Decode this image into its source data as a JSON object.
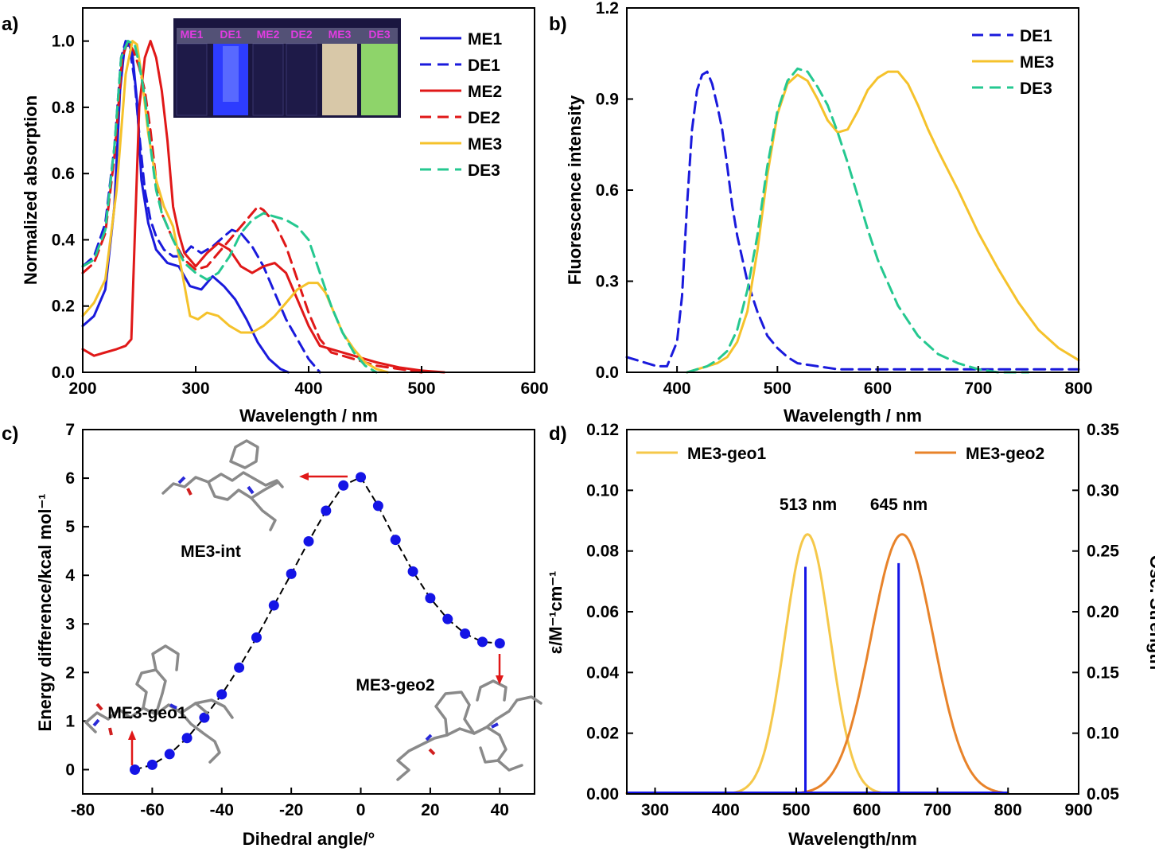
{
  "chart_data": [
    {
      "panel": "a)",
      "type": "line",
      "xlabel": "Wavelength / nm",
      "ylabel": "Normalized absorption",
      "xlim": [
        200,
        600
      ],
      "ylim": [
        0.0,
        1.1
      ],
      "xticks": [
        "200",
        "300",
        "400",
        "500",
        "600"
      ],
      "yticks": [
        "0.0",
        "0.2",
        "0.4",
        "0.6",
        "0.8",
        "1.0"
      ],
      "legend_position": "top-right",
      "inset_labels": [
        "ME1",
        "DE1",
        "ME2",
        "DE2",
        "ME3",
        "DE3"
      ],
      "series": [
        {
          "name": "ME1",
          "color": "#1a1adc",
          "dash": false,
          "x": [
            200,
            210,
            220,
            228,
            233,
            237,
            240,
            244,
            248,
            252,
            258,
            265,
            275,
            285,
            295,
            305,
            315,
            325,
            335,
            345,
            355,
            365,
            375,
            382
          ],
          "y": [
            0.14,
            0.17,
            0.25,
            0.5,
            0.85,
            0.98,
            1.0,
            0.96,
            0.82,
            0.58,
            0.45,
            0.37,
            0.33,
            0.32,
            0.26,
            0.25,
            0.29,
            0.26,
            0.22,
            0.16,
            0.09,
            0.04,
            0.01,
            0.0
          ]
        },
        {
          "name": "DE1",
          "color": "#1a1adc",
          "dash": true,
          "x": [
            200,
            210,
            220,
            228,
            234,
            238,
            242,
            246,
            250,
            255,
            260,
            265,
            272,
            280,
            288,
            296,
            305,
            315,
            325,
            332,
            340,
            350,
            360,
            370,
            380,
            390,
            400,
            410
          ],
          "y": [
            0.32,
            0.35,
            0.45,
            0.68,
            0.95,
            1.0,
            0.97,
            0.88,
            0.72,
            0.55,
            0.46,
            0.41,
            0.37,
            0.35,
            0.35,
            0.38,
            0.36,
            0.38,
            0.41,
            0.43,
            0.42,
            0.38,
            0.32,
            0.24,
            0.16,
            0.1,
            0.04,
            0.0
          ]
        },
        {
          "name": "ME2",
          "color": "#e01818",
          "dash": false,
          "x": [
            200,
            210,
            220,
            230,
            238,
            243,
            246,
            250,
            255,
            260,
            265,
            270,
            275,
            280,
            285,
            290,
            295,
            300,
            310,
            320,
            330,
            340,
            350,
            360,
            370,
            380,
            390,
            400,
            410,
            420,
            440,
            460,
            480,
            500,
            520
          ],
          "y": [
            0.07,
            0.05,
            0.06,
            0.07,
            0.08,
            0.1,
            0.4,
            0.8,
            0.95,
            1.0,
            0.95,
            0.85,
            0.7,
            0.5,
            0.42,
            0.36,
            0.34,
            0.32,
            0.36,
            0.39,
            0.37,
            0.32,
            0.3,
            0.32,
            0.33,
            0.3,
            0.22,
            0.14,
            0.08,
            0.07,
            0.05,
            0.03,
            0.015,
            0.005,
            0.0
          ]
        },
        {
          "name": "DE2",
          "color": "#e01818",
          "dash": true,
          "x": [
            200,
            210,
            220,
            228,
            235,
            240,
            245,
            250,
            255,
            260,
            265,
            270,
            280,
            290,
            300,
            310,
            320,
            330,
            340,
            350,
            355,
            360,
            370,
            380,
            390,
            400,
            410,
            420,
            440,
            460,
            480,
            500
          ],
          "y": [
            0.3,
            0.33,
            0.42,
            0.65,
            0.95,
            1.0,
            0.97,
            0.92,
            0.85,
            0.73,
            0.58,
            0.48,
            0.4,
            0.34,
            0.31,
            0.32,
            0.36,
            0.4,
            0.44,
            0.48,
            0.5,
            0.49,
            0.45,
            0.38,
            0.28,
            0.18,
            0.1,
            0.06,
            0.04,
            0.02,
            0.01,
            0.0
          ]
        },
        {
          "name": "ME3",
          "color": "#f5c22b",
          "dash": false,
          "x": [
            200,
            210,
            220,
            230,
            238,
            244,
            248,
            252,
            258,
            265,
            272,
            280,
            288,
            295,
            302,
            310,
            320,
            330,
            340,
            350,
            360,
            370,
            380,
            390,
            400,
            408,
            415,
            420,
            425,
            430,
            440,
            450,
            460,
            470
          ],
          "y": [
            0.17,
            0.21,
            0.28,
            0.55,
            0.9,
            1.0,
            0.99,
            0.9,
            0.72,
            0.58,
            0.5,
            0.44,
            0.3,
            0.17,
            0.16,
            0.18,
            0.17,
            0.14,
            0.12,
            0.12,
            0.14,
            0.17,
            0.21,
            0.25,
            0.27,
            0.27,
            0.24,
            0.2,
            0.16,
            0.12,
            0.07,
            0.03,
            0.01,
            0.0
          ]
        },
        {
          "name": "DE3",
          "color": "#25c890",
          "dash": true,
          "x": [
            200,
            210,
            220,
            228,
            234,
            240,
            246,
            250,
            255,
            260,
            265,
            270,
            280,
            290,
            300,
            310,
            320,
            330,
            340,
            350,
            360,
            370,
            380,
            390,
            400,
            410,
            420,
            430,
            440,
            450,
            460
          ],
          "y": [
            0.32,
            0.34,
            0.43,
            0.68,
            0.95,
            1.0,
            0.99,
            0.93,
            0.83,
            0.68,
            0.55,
            0.48,
            0.4,
            0.33,
            0.3,
            0.28,
            0.3,
            0.35,
            0.42,
            0.46,
            0.48,
            0.47,
            0.46,
            0.44,
            0.4,
            0.3,
            0.2,
            0.12,
            0.06,
            0.02,
            0.0
          ]
        }
      ]
    },
    {
      "panel": "b)",
      "type": "line",
      "xlabel": "Wavelength / nm",
      "ylabel": "Fluorescence intensity",
      "xlim": [
        350,
        800
      ],
      "ylim": [
        0.0,
        1.2
      ],
      "xticks": [
        "400",
        "500",
        "600",
        "700",
        "800"
      ],
      "yticks": [
        "0.0",
        "0.3",
        "0.6",
        "0.9",
        "1.2"
      ],
      "legend_position": "top-right",
      "series": [
        {
          "name": "DE1",
          "color": "#1a1adc",
          "dash": true,
          "x": [
            350,
            360,
            370,
            380,
            390,
            400,
            405,
            410,
            415,
            420,
            425,
            430,
            435,
            440,
            445,
            450,
            455,
            460,
            470,
            480,
            490,
            500,
            510,
            520,
            540,
            560,
            580,
            600,
            650,
            700,
            750,
            800
          ],
          "y": [
            0.05,
            0.04,
            0.03,
            0.02,
            0.02,
            0.1,
            0.25,
            0.55,
            0.8,
            0.93,
            0.98,
            0.99,
            0.95,
            0.88,
            0.8,
            0.68,
            0.55,
            0.45,
            0.3,
            0.2,
            0.12,
            0.08,
            0.05,
            0.03,
            0.02,
            0.01,
            0.01,
            0.01,
            0.01,
            0.01,
            0.01,
            0.01
          ]
        },
        {
          "name": "ME3",
          "color": "#f5c22b",
          "dash": false,
          "x": [
            410,
            420,
            430,
            440,
            450,
            460,
            470,
            480,
            490,
            500,
            510,
            520,
            530,
            540,
            550,
            560,
            570,
            580,
            590,
            600,
            610,
            620,
            630,
            640,
            650,
            660,
            680,
            700,
            720,
            740,
            760,
            780,
            800
          ],
          "y": [
            0.0,
            0.01,
            0.02,
            0.03,
            0.05,
            0.1,
            0.2,
            0.4,
            0.65,
            0.85,
            0.95,
            0.98,
            0.96,
            0.9,
            0.83,
            0.79,
            0.8,
            0.86,
            0.93,
            0.97,
            0.99,
            0.99,
            0.95,
            0.88,
            0.8,
            0.73,
            0.6,
            0.46,
            0.34,
            0.23,
            0.14,
            0.08,
            0.04
          ]
        },
        {
          "name": "DE3",
          "color": "#25c890",
          "dash": true,
          "x": [
            410,
            420,
            430,
            440,
            450,
            460,
            470,
            480,
            490,
            500,
            510,
            520,
            530,
            540,
            550,
            560,
            570,
            580,
            590,
            600,
            620,
            640,
            660,
            680,
            700,
            720,
            750
          ],
          "y": [
            0.0,
            0.01,
            0.02,
            0.04,
            0.07,
            0.14,
            0.27,
            0.45,
            0.68,
            0.86,
            0.96,
            1.0,
            0.99,
            0.94,
            0.88,
            0.79,
            0.69,
            0.58,
            0.47,
            0.37,
            0.22,
            0.12,
            0.06,
            0.03,
            0.01,
            0.0,
            0.0
          ]
        }
      ]
    },
    {
      "panel": "c)",
      "type": "scatter",
      "xlabel": "Dihedral angle/°",
      "ylabel": "Energy difference/kcal mol⁻¹",
      "xlim": [
        -80,
        50
      ],
      "ylim": [
        -0.5,
        7
      ],
      "xticks": [
        "-80",
        "-60",
        "-40",
        "-20",
        "0",
        "20",
        "40"
      ],
      "yticks": [
        "0",
        "1",
        "2",
        "3",
        "4",
        "5",
        "6",
        "7"
      ],
      "series": [
        {
          "color": "#1414e6",
          "x": [
            -65,
            -60,
            -55,
            -50,
            -45,
            -40,
            -35,
            -30,
            -25,
            -20,
            -15,
            -10,
            -5,
            0,
            5,
            10,
            15,
            20,
            25,
            30,
            35,
            40
          ],
          "y": [
            0.0,
            0.1,
            0.32,
            0.65,
            1.07,
            1.55,
            2.1,
            2.72,
            3.38,
            4.03,
            4.7,
            5.33,
            5.85,
            6.02,
            5.43,
            4.73,
            4.08,
            3.53,
            3.1,
            2.8,
            2.63,
            2.6
          ]
        }
      ],
      "annotations": [
        "ME3-int",
        "ME3-geo1",
        "ME3-geo2"
      ]
    },
    {
      "panel": "d)",
      "type": "line",
      "xlabel": "Wavelength/nm",
      "ylabel": "ε/M⁻¹cm⁻¹",
      "y2label": "Osc. Strength",
      "xlim": [
        260,
        900
      ],
      "ylim": [
        0.0,
        0.12
      ],
      "y2lim": [
        0.05,
        0.35
      ],
      "xticks": [
        "300",
        "400",
        "500",
        "600",
        "700",
        "800",
        "900"
      ],
      "yticks": [
        "0.00",
        "0.02",
        "0.04",
        "0.06",
        "0.08",
        "0.10",
        "0.12"
      ],
      "y2ticks": [
        "0.05",
        "0.10",
        "0.15",
        "0.20",
        "0.25",
        "0.30",
        "0.35"
      ],
      "legend_position": "top",
      "peak_labels": [
        "513 nm",
        "645 nm"
      ],
      "series": [
        {
          "name": "ME3-geo1",
          "color": "#f5c84a",
          "type": "gaussian",
          "center": 516,
          "height": 0.0855,
          "sigma": 32,
          "xmin": 260,
          "xmax": 800
        },
        {
          "name": "ME3-geo2",
          "color": "#e8832a",
          "type": "gaussian",
          "center": 650,
          "height": 0.0855,
          "sigma": 44,
          "xmin": 260,
          "xmax": 800
        }
      ],
      "sticks": [
        {
          "x": 513,
          "osc": 0.237,
          "color": "#1414e6"
        },
        {
          "x": 645,
          "osc": 0.24,
          "color": "#1414e6"
        }
      ]
    }
  ]
}
